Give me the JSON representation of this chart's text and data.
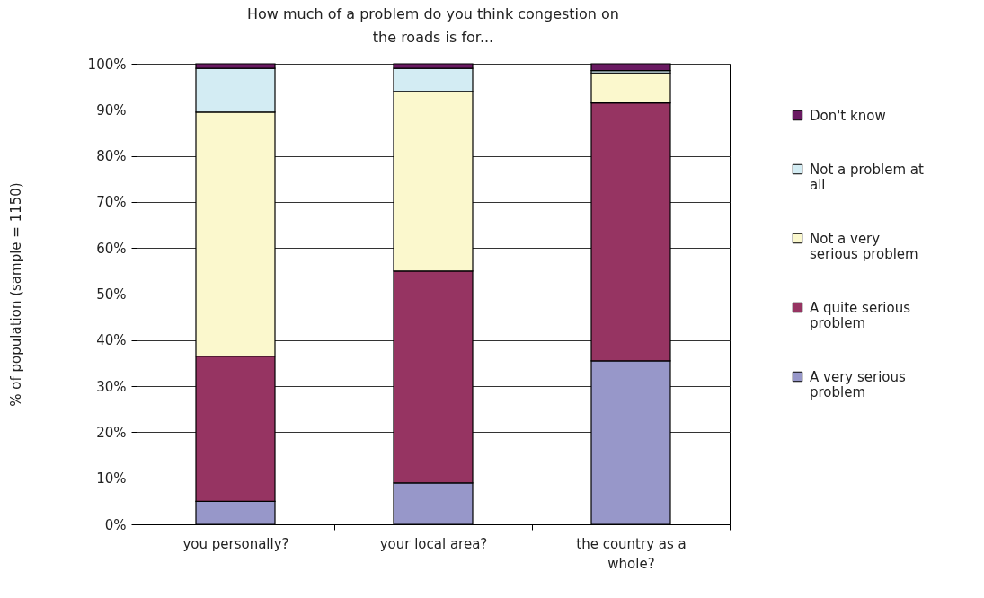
{
  "chart_data": {
    "type": "bar",
    "stacked": true,
    "title": "How much of a problem do you think congestion on the roads is for...",
    "ylabel": "% of population (sample = 1150)",
    "categories": [
      "you personally?",
      "your local area?",
      "the country as a whole?"
    ],
    "series": [
      {
        "name": "A very serious problem",
        "color": "#9797c9",
        "values": [
          5,
          9,
          35.5
        ]
      },
      {
        "name": "A quite serious problem",
        "color": "#963462",
        "values": [
          31.5,
          46,
          56
        ]
      },
      {
        "name": "Not a very serious problem",
        "color": "#fbf8cd",
        "values": [
          53,
          39,
          6.5
        ]
      },
      {
        "name": "Not a problem at all",
        "color": "#d3ecf3",
        "values": [
          9.5,
          5,
          0.5
        ]
      },
      {
        "name": "Don't know",
        "color": "#6a1a62",
        "values": [
          1,
          1,
          1.5
        ]
      }
    ],
    "ylim": [
      0,
      100
    ],
    "yticks": [
      {
        "value": 0,
        "label": "0%"
      },
      {
        "value": 10,
        "label": "10%"
      },
      {
        "value": 20,
        "label": "20%"
      },
      {
        "value": 30,
        "label": "30%"
      },
      {
        "value": 40,
        "label": "40%"
      },
      {
        "value": 50,
        "label": "50%"
      },
      {
        "value": 60,
        "label": "60%"
      },
      {
        "value": 70,
        "label": "70%"
      },
      {
        "value": 80,
        "label": "80%"
      },
      {
        "value": 90,
        "label": "90%"
      },
      {
        "value": 100,
        "label": "100%"
      }
    ],
    "grid": "y",
    "legend": "right"
  }
}
